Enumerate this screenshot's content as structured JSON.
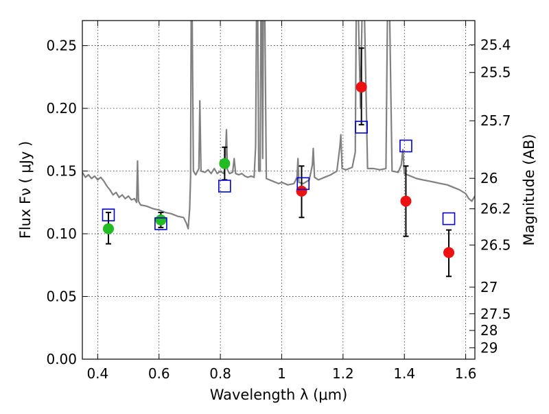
{
  "chart_data": {
    "type": "scatter",
    "xlabel": "Wavelength  λ (μm)",
    "ylabel": "Flux  Fν  ( μJy )",
    "y2label": "Magnitude (AB)",
    "xlim": [
      0.35,
      1.63
    ],
    "ylim": [
      0.0,
      0.27
    ],
    "grid": true,
    "x_ticks": [
      0.4,
      0.6,
      0.8,
      1.0,
      1.2,
      1.4,
      1.6
    ],
    "x_tick_labels": [
      "0.4",
      "0.6",
      "0.8",
      "1",
      "1.2",
      "1.4",
      "1.6"
    ],
    "y_ticks": [
      0.0,
      0.05,
      0.1,
      0.15,
      0.2,
      0.25
    ],
    "y_tick_labels": [
      "0.00",
      "0.05",
      "0.10",
      "0.15",
      "0.20",
      "0.25"
    ],
    "y2_ticks": [
      {
        "label": "25.4",
        "flux": 0.2507
      },
      {
        "label": "25.5",
        "flux": 0.2286
      },
      {
        "label": "25.7",
        "flux": 0.1901
      },
      {
        "label": "26",
        "flux": 0.1442
      },
      {
        "label": "26.2",
        "flux": 0.1199
      },
      {
        "label": "26.5",
        "flux": 0.091
      },
      {
        "label": "27",
        "flux": 0.0574
      },
      {
        "label": "27.5",
        "flux": 0.0362
      },
      {
        "label": "28",
        "flux": 0.0229
      },
      {
        "label": "29",
        "flux": 0.0091
      }
    ],
    "series": [
      {
        "marker": "circle",
        "color": "#22bb22",
        "points": [
          {
            "x": 0.435,
            "y": 0.104,
            "ylo": 0.092,
            "yhi": 0.117
          },
          {
            "x": 0.606,
            "y": 0.111,
            "ylo": 0.105,
            "yhi": 0.117
          },
          {
            "x": 0.814,
            "y": 0.156,
            "ylo": 0.143,
            "yhi": 0.169
          }
        ]
      },
      {
        "marker": "circle",
        "color": "#ee1111",
        "points": [
          {
            "x": 1.065,
            "y": 0.134,
            "ylo": 0.113,
            "yhi": 0.154
          },
          {
            "x": 1.26,
            "y": 0.217,
            "ylo": 0.187,
            "yhi": 0.248
          },
          {
            "x": 1.405,
            "y": 0.126,
            "ylo": 0.098,
            "yhi": 0.154
          },
          {
            "x": 1.545,
            "y": 0.085,
            "ylo": 0.066,
            "yhi": 0.103
          }
        ]
      },
      {
        "marker": "open-square",
        "color": "#0000cc",
        "points": [
          {
            "x": 0.435,
            "y": 0.115
          },
          {
            "x": 0.606,
            "y": 0.108
          },
          {
            "x": 0.814,
            "y": 0.138
          },
          {
            "x": 1.07,
            "y": 0.14
          },
          {
            "x": 1.26,
            "y": 0.185
          },
          {
            "x": 1.405,
            "y": 0.17
          },
          {
            "x": 1.545,
            "y": 0.112
          }
        ]
      }
    ],
    "spectrum": {
      "color": "#808080",
      "points": [
        [
          0.35,
          0.149
        ],
        [
          0.36,
          0.145
        ],
        [
          0.37,
          0.147
        ],
        [
          0.38,
          0.144
        ],
        [
          0.39,
          0.146
        ],
        [
          0.4,
          0.143
        ],
        [
          0.41,
          0.145
        ],
        [
          0.42,
          0.142
        ],
        [
          0.43,
          0.138
        ],
        [
          0.44,
          0.135
        ],
        [
          0.45,
          0.131
        ],
        [
          0.46,
          0.133
        ],
        [
          0.47,
          0.129
        ],
        [
          0.48,
          0.131
        ],
        [
          0.49,
          0.128
        ],
        [
          0.5,
          0.13
        ],
        [
          0.51,
          0.127
        ],
        [
          0.52,
          0.128
        ],
        [
          0.527,
          0.125
        ],
        [
          0.53,
          0.158
        ],
        [
          0.533,
          0.126
        ],
        [
          0.54,
          0.123
        ],
        [
          0.56,
          0.122
        ],
        [
          0.58,
          0.12
        ],
        [
          0.6,
          0.119
        ],
        [
          0.62,
          0.117
        ],
        [
          0.64,
          0.116
        ],
        [
          0.66,
          0.114
        ],
        [
          0.68,
          0.113
        ],
        [
          0.69,
          0.108
        ],
        [
          0.695,
          0.104
        ],
        [
          0.7,
          0.12
        ],
        [
          0.703,
          0.145
        ],
        [
          0.705,
          0.275
        ],
        [
          0.708,
          0.275
        ],
        [
          0.712,
          0.15
        ],
        [
          0.72,
          0.147
        ],
        [
          0.73,
          0.152
        ],
        [
          0.733,
          0.206
        ],
        [
          0.737,
          0.15
        ],
        [
          0.75,
          0.149
        ],
        [
          0.76,
          0.151
        ],
        [
          0.77,
          0.148
        ],
        [
          0.78,
          0.152
        ],
        [
          0.79,
          0.148
        ],
        [
          0.8,
          0.15
        ],
        [
          0.81,
          0.148
        ],
        [
          0.815,
          0.152
        ],
        [
          0.82,
          0.183
        ],
        [
          0.823,
          0.151
        ],
        [
          0.83,
          0.148
        ],
        [
          0.84,
          0.149
        ],
        [
          0.845,
          0.16
        ],
        [
          0.85,
          0.148
        ],
        [
          0.86,
          0.147
        ],
        [
          0.87,
          0.148
        ],
        [
          0.88,
          0.146
        ],
        [
          0.89,
          0.145
        ],
        [
          0.9,
          0.146
        ],
        [
          0.91,
          0.145
        ],
        [
          0.915,
          0.17
        ],
        [
          0.918,
          0.275
        ],
        [
          0.922,
          0.275
        ],
        [
          0.925,
          0.15
        ],
        [
          0.93,
          0.15
        ],
        [
          0.932,
          0.275
        ],
        [
          0.935,
          0.275
        ],
        [
          0.938,
          0.16
        ],
        [
          0.94,
          0.275
        ],
        [
          0.945,
          0.275
        ],
        [
          0.95,
          0.144
        ],
        [
          0.97,
          0.142
        ],
        [
          0.99,
          0.14
        ],
        [
          1.0,
          0.141
        ],
        [
          1.02,
          0.139
        ],
        [
          1.04,
          0.14
        ],
        [
          1.05,
          0.145
        ],
        [
          1.053,
          0.16
        ],
        [
          1.056,
          0.141
        ],
        [
          1.07,
          0.14
        ],
        [
          1.09,
          0.143
        ],
        [
          1.1,
          0.155
        ],
        [
          1.103,
          0.168
        ],
        [
          1.107,
          0.145
        ],
        [
          1.12,
          0.143
        ],
        [
          1.14,
          0.145
        ],
        [
          1.16,
          0.147
        ],
        [
          1.18,
          0.15
        ],
        [
          1.19,
          0.17
        ],
        [
          1.193,
          0.179
        ],
        [
          1.197,
          0.152
        ],
        [
          1.21,
          0.151
        ],
        [
          1.23,
          0.153
        ],
        [
          1.24,
          0.165
        ],
        [
          1.243,
          0.275
        ],
        [
          1.25,
          0.275
        ],
        [
          1.257,
          0.2
        ],
        [
          1.262,
          0.275
        ],
        [
          1.27,
          0.275
        ],
        [
          1.28,
          0.152
        ],
        [
          1.3,
          0.152
        ],
        [
          1.32,
          0.151
        ],
        [
          1.34,
          0.152
        ],
        [
          1.345,
          0.275
        ],
        [
          1.352,
          0.275
        ],
        [
          1.36,
          0.15
        ],
        [
          1.38,
          0.149
        ],
        [
          1.39,
          0.155
        ],
        [
          1.395,
          0.167
        ],
        [
          1.4,
          0.148
        ],
        [
          1.42,
          0.146
        ],
        [
          1.44,
          0.144
        ],
        [
          1.46,
          0.143
        ],
        [
          1.48,
          0.142
        ],
        [
          1.5,
          0.141
        ],
        [
          1.52,
          0.14
        ],
        [
          1.54,
          0.139
        ],
        [
          1.56,
          0.137
        ],
        [
          1.58,
          0.135
        ],
        [
          1.6,
          0.132
        ],
        [
          1.61,
          0.128
        ],
        [
          1.62,
          0.126
        ],
        [
          1.63,
          0.13
        ]
      ]
    }
  }
}
